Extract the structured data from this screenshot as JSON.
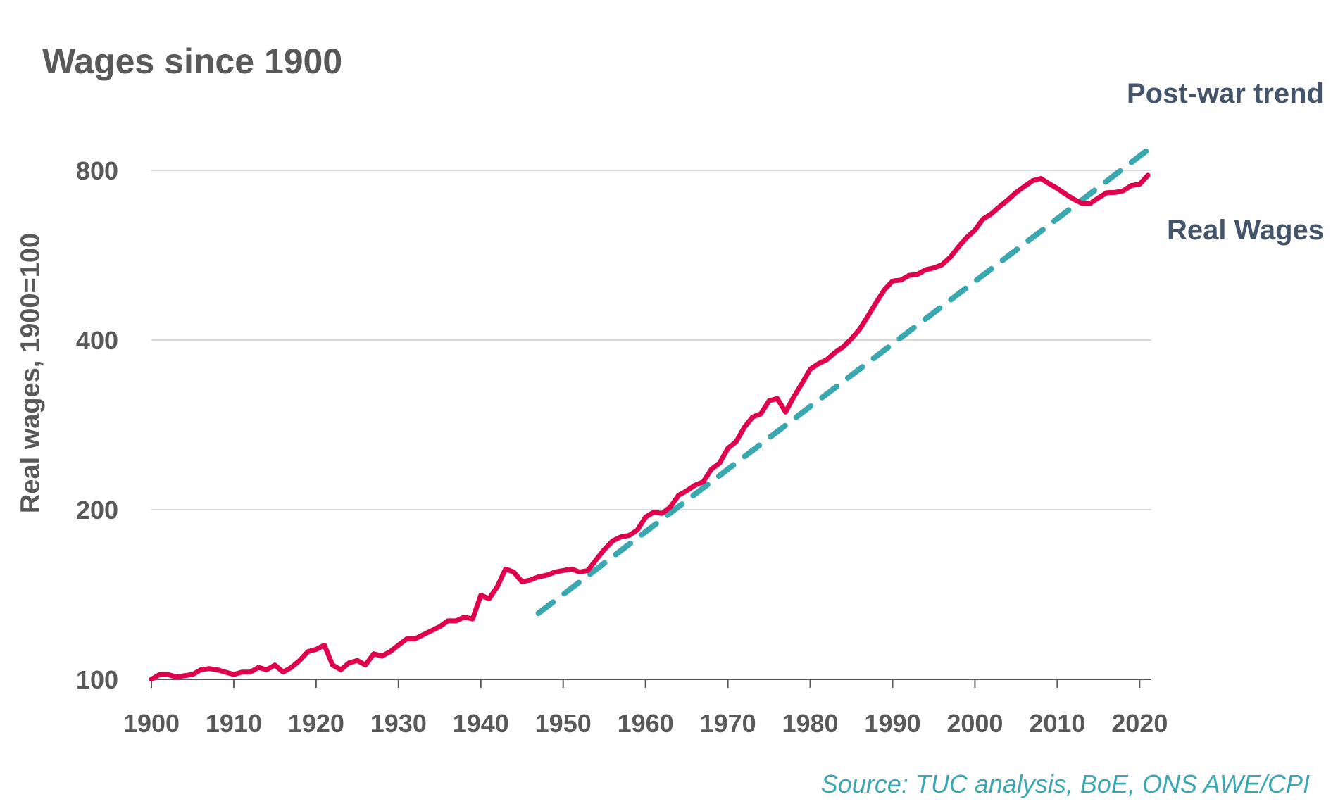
{
  "chart_data": {
    "type": "line",
    "title": "Wages since 1900",
    "ylabel": "Real wages, 1900=100",
    "xlabel": "",
    "yscale": "log",
    "ylim": [
      100,
      870
    ],
    "xlim": [
      1900,
      2021
    ],
    "yticks": [
      100,
      200,
      400,
      800
    ],
    "xticks": [
      1900,
      1910,
      1920,
      1930,
      1940,
      1950,
      1960,
      1970,
      1980,
      1990,
      2000,
      2010,
      2020
    ],
    "grid": "horizontal",
    "source": "Source: TUC analysis, BoE, ONS AWE/CPI",
    "colors": {
      "real_wages": "#e0004d",
      "trend": "#3aa8b0",
      "grid": "#d9d9d9",
      "axis": "#595959"
    },
    "series": [
      {
        "name": "Real Wages",
        "style": "solid",
        "x": [
          1900,
          1901,
          1902,
          1903,
          1904,
          1905,
          1906,
          1907,
          1908,
          1909,
          1910,
          1911,
          1912,
          1913,
          1914,
          1915,
          1916,
          1917,
          1918,
          1919,
          1920,
          1921,
          1922,
          1923,
          1924,
          1925,
          1926,
          1927,
          1928,
          1929,
          1930,
          1931,
          1932,
          1933,
          1934,
          1935,
          1936,
          1937,
          1938,
          1939,
          1940,
          1941,
          1942,
          1943,
          1944,
          1945,
          1946,
          1947,
          1948,
          1949,
          1950,
          1951,
          1952,
          1953,
          1954,
          1955,
          1956,
          1957,
          1958,
          1959,
          1960,
          1961,
          1962,
          1963,
          1964,
          1965,
          1966,
          1967,
          1968,
          1969,
          1970,
          1971,
          1972,
          1973,
          1974,
          1975,
          1976,
          1977,
          1978,
          1979,
          1980,
          1981,
          1982,
          1983,
          1984,
          1985,
          1986,
          1987,
          1988,
          1989,
          1990,
          1991,
          1992,
          1993,
          1994,
          1995,
          1996,
          1997,
          1998,
          1999,
          2000,
          2001,
          2002,
          2003,
          2004,
          2005,
          2006,
          2007,
          2008,
          2009,
          2010,
          2011,
          2012,
          2013,
          2014,
          2015,
          2016,
          2017,
          2018,
          2019,
          2020,
          2021
        ],
        "values": [
          100,
          102,
          102,
          101,
          101.5,
          102,
          104,
          104.5,
          104,
          103,
          102,
          103,
          103,
          105,
          104,
          106,
          103,
          105,
          108,
          112,
          113,
          115,
          106,
          104,
          107,
          108,
          106,
          111,
          110,
          112,
          115,
          118,
          118,
          120,
          122,
          124,
          127,
          127,
          129,
          128,
          141,
          139,
          146,
          157,
          155,
          149,
          150,
          152,
          153,
          155,
          156,
          157,
          155,
          156,
          163,
          170,
          176,
          179,
          180,
          184,
          194,
          198,
          197,
          202,
          212,
          216,
          221,
          224,
          236,
          242,
          257,
          264,
          280,
          292,
          296,
          312,
          315,
          298,
          317,
          335,
          355,
          363,
          369,
          380,
          389,
          402,
          418,
          441,
          466,
          491,
          509,
          511,
          521,
          523,
          533,
          537,
          544,
          561,
          585,
          608,
          627,
          656,
          670,
          690,
          709,
          731,
          749,
          767,
          774,
          758,
          743,
          726,
          711,
          699,
          699,
          715,
          730,
          731,
          736,
          752,
          756,
          784
        ]
      },
      {
        "name": "Post-war trend",
        "style": "dashed",
        "x": [
          1947,
          2021
        ],
        "values": [
          131,
          870
        ]
      }
    ]
  }
}
